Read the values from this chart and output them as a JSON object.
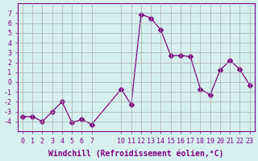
{
  "x_values": [
    0,
    1,
    2,
    3,
    4,
    5,
    6,
    7,
    10,
    11,
    12,
    13,
    14,
    15,
    16,
    17,
    18,
    19,
    20,
    21,
    22,
    23
  ],
  "y_values": [
    -3.5,
    -3.5,
    -4.0,
    -3.0,
    -2.0,
    -4.1,
    -3.8,
    -4.3,
    -0.7,
    -2.3,
    6.9,
    6.5,
    5.3,
    2.7,
    2.7,
    2.6,
    -0.7,
    -1.3,
    1.2,
    2.2,
    1.3,
    -0.3
  ],
  "line_color": "#800080",
  "marker": "D",
  "marker_size": 3,
  "bg_color": "#d6f0f0",
  "grid_color": "#aaaaaa",
  "xlabel": "Windchill (Refroidissement éolien,°C)",
  "ylim": [
    -5,
    8
  ],
  "xlim": [
    -0.5,
    23.5
  ],
  "xticks": [
    0,
    1,
    2,
    3,
    4,
    5,
    6,
    7,
    10,
    11,
    12,
    13,
    14,
    15,
    16,
    17,
    18,
    19,
    20,
    21,
    22,
    23
  ],
  "yticks": [
    -4,
    -3,
    -2,
    -1,
    0,
    1,
    2,
    3,
    4,
    5,
    6,
    7
  ],
  "tick_label_size": 6,
  "xlabel_size": 7
}
